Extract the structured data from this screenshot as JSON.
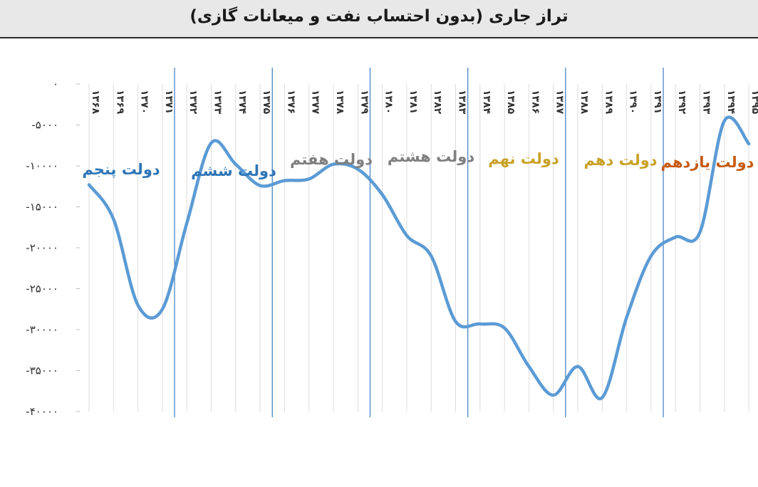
{
  "chart_data": {
    "type": "line",
    "title": "تراز جاری (بدون احتساب نفت و میعانات گازی)",
    "xlabel": "",
    "ylabel": "",
    "ylim": [
      -40000,
      0
    ],
    "y_ticks": [
      "۰",
      "-۵۰۰۰",
      "-۱۰۰۰۰",
      "-۱۵۰۰۰",
      "-۲۰۰۰۰",
      "-۲۵۰۰۰",
      "-۳۰۰۰۰",
      "-۳۵۰۰۰",
      "-۴۰۰۰۰"
    ],
    "y_tick_values": [
      0,
      -5000,
      -10000,
      -15000,
      -20000,
      -25000,
      -30000,
      -35000,
      -40000
    ],
    "categories": [
      "۱۳۶۸",
      "۱۳۶۹",
      "۱۳۷۰",
      "۱۳۷۱",
      "۱۳۷۲",
      "۱۳۷۳",
      "۱۳۷۴",
      "۱۳۷۵",
      "۱۳۷۶",
      "۱۳۷۷",
      "۱۳۷۸",
      "۱۳۷۹",
      "۱۳۸۰",
      "۱۳۸۱",
      "۱۳۸۲",
      "۱۳۸۳",
      "۱۳۸۴",
      "۱۳۸۵",
      "۱۳۸۶",
      "۱۳۸۷",
      "۱۳۸۸",
      "۱۳۸۹",
      "۱۳۹۰",
      "۱۳۹۱",
      "۱۳۹۲",
      "۱۳۹۳",
      "۱۳۹۴",
      "۱۳۹۵"
    ],
    "series": [
      {
        "name": "",
        "color": "#5b9bd5",
        "values": [
          -12300,
          -16500,
          -27000,
          -27500,
          -17000,
          -7200,
          -9800,
          -12400,
          -11800,
          -11600,
          -9800,
          -10400,
          -13500,
          -18500,
          -21000,
          -29000,
          -29300,
          -29800,
          -34500,
          -38000,
          -34500,
          -38300,
          -28500,
          -21000,
          -18700,
          -18100,
          -4500,
          -7300
        ]
      }
    ],
    "grid": true,
    "legend": "none",
    "government_periods": [
      {
        "label": "دولت پنجم",
        "color": "#2e75b6"
      },
      {
        "label": "دولت ششم",
        "color": "#2e75b6"
      },
      {
        "label": "دولت هفتم",
        "color": "#7f7f7f"
      },
      {
        "label": "دولت هشتم",
        "color": "#7f7f7f"
      },
      {
        "label": "دولت نهم",
        "color": "#c9a227"
      },
      {
        "label": "دولت دهم",
        "color": "#c9a227"
      },
      {
        "label": "دولت یازدهم",
        "color": "#c55a11"
      }
    ],
    "period_boundaries_after_index": [
      3,
      7,
      11,
      15,
      19,
      23
    ]
  }
}
